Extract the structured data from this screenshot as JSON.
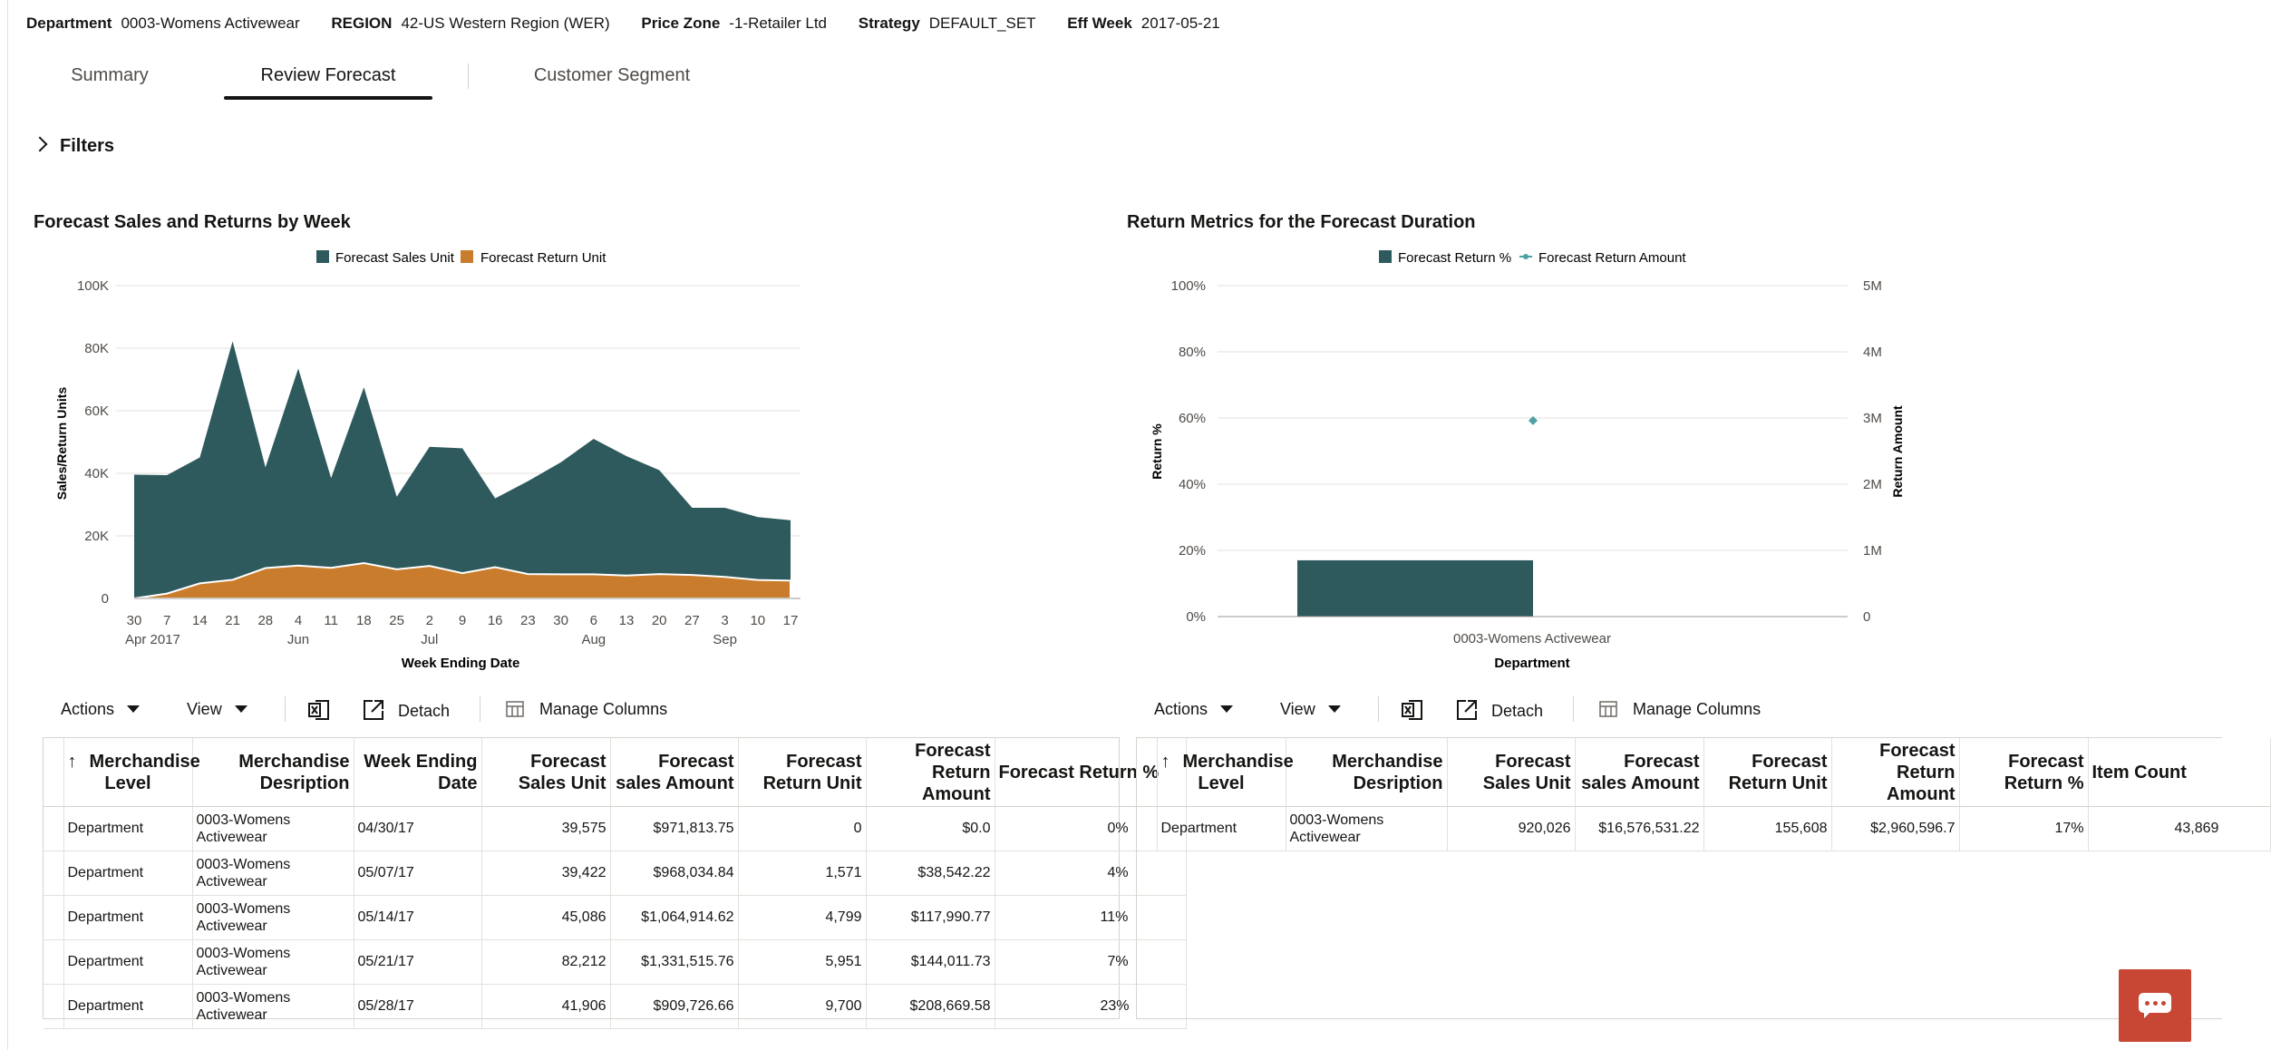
{
  "context": [
    {
      "key": "Department",
      "value": "0003-Womens Activewear"
    },
    {
      "key": "REGION",
      "value": "42-US Western Region (WER)"
    },
    {
      "key": "Price Zone",
      "value": "-1-Retailer Ltd"
    },
    {
      "key": "Strategy",
      "value": "DEFAULT_SET"
    },
    {
      "key": "Eff Week",
      "value": "2017-05-21"
    }
  ],
  "tabs": [
    {
      "label": "Summary",
      "active": false
    },
    {
      "label": "Review Forecast",
      "active": true
    },
    {
      "label": "Customer Segment",
      "active": false
    }
  ],
  "filters_label": "Filters",
  "left_chart_title": "Forecast Sales and Returns by Week",
  "right_chart_title": "Return Metrics for the Forecast Duration",
  "toolbar": {
    "actions": "Actions",
    "view": "View",
    "detach": "Detach",
    "manage_columns": "Manage Columns"
  },
  "left_table": {
    "headers": [
      "Merchandise Level",
      "Merchandise Desription",
      "Week Ending Date",
      "Forecast Sales Unit",
      "Forecast sales Amount",
      "Forecast Return Unit",
      "Forecast Return Amount",
      "Forecast Return %"
    ],
    "rows": [
      [
        "Department",
        "0003-Womens Activewear",
        "04/30/17",
        "39,575",
        "$971,813.75",
        "0",
        "$0.0",
        "0%"
      ],
      [
        "Department",
        "0003-Womens Activewear",
        "05/07/17",
        "39,422",
        "$968,034.84",
        "1,571",
        "$38,542.22",
        "4%"
      ],
      [
        "Department",
        "0003-Womens Activewear",
        "05/14/17",
        "45,086",
        "$1,064,914.62",
        "4,799",
        "$117,990.77",
        "11%"
      ],
      [
        "Department",
        "0003-Womens Activewear",
        "05/21/17",
        "82,212",
        "$1,331,515.76",
        "5,951",
        "$144,011.73",
        "7%"
      ],
      [
        "Department",
        "0003-Womens Activewear",
        "05/28/17",
        "41,906",
        "$909,726.66",
        "9,700",
        "$208,669.58",
        "23%"
      ]
    ]
  },
  "right_table": {
    "headers": [
      "Merchandise Level",
      "Merchandise Desription",
      "Forecast Sales Unit",
      "Forecast sales Amount",
      "Forecast Return Unit",
      "Forecast Return Amount",
      "Forecast Return %",
      "Item Count"
    ],
    "rows": [
      [
        "Department",
        "0003-Womens Activewear",
        "920,026",
        "$16,576,531.22",
        "155,608",
        "$2,960,596.7",
        "17%",
        "43,869"
      ]
    ]
  },
  "chart_data": [
    {
      "type": "area",
      "title": "Forecast Sales and Returns by Week",
      "xlabel": "Week Ending Date",
      "ylabel": "Sales/Return Units",
      "ylim": [
        0,
        100000
      ],
      "y_ticks": [
        "0",
        "20K",
        "40K",
        "60K",
        "80K",
        "100K"
      ],
      "x_ticks": [
        "30",
        "7",
        "14",
        "21",
        "28",
        "4",
        "11",
        "18",
        "25",
        "2",
        "9",
        "16",
        "23",
        "30",
        "6",
        "13",
        "20",
        "27",
        "3",
        "10",
        "17"
      ],
      "x_tick_months": {
        "0": "Apr 2017",
        "5": "Jun",
        "9": "Jul",
        "14": "Aug",
        "18": "Sep"
      },
      "legend_position": "top",
      "series": [
        {
          "name": "Forecast Sales Unit",
          "color": "#2e5a5e",
          "values": [
            39575,
            39422,
            45086,
            82212,
            41906,
            73500,
            38500,
            67500,
            32500,
            48500,
            48000,
            32000,
            37500,
            43500,
            51000,
            45500,
            41000,
            29000,
            29000,
            26000,
            25000
          ]
        },
        {
          "name": "Forecast Return Unit",
          "color": "#c97c2c",
          "values": [
            0,
            1571,
            4799,
            5951,
            9700,
            10500,
            9800,
            11300,
            9300,
            10400,
            8100,
            10000,
            7800,
            7700,
            7700,
            7300,
            7800,
            7500,
            6900,
            5900,
            5700
          ]
        }
      ]
    },
    {
      "type": "bar",
      "title": "Return Metrics for the Forecast Duration",
      "xlabel": "Department",
      "ylabel": "Return %",
      "y2label": "Return Amount",
      "categories": [
        "0003-Womens Activewear"
      ],
      "ylim": [
        0,
        100
      ],
      "y_ticks": [
        "0%",
        "20%",
        "40%",
        "60%",
        "80%",
        "100%"
      ],
      "y2lim": [
        0,
        5000000
      ],
      "y2_ticks": [
        "0",
        "1M",
        "2M",
        "3M",
        "4M",
        "5M"
      ],
      "legend_position": "top",
      "series": [
        {
          "name": "Forecast Return %",
          "color": "#2e5a5e",
          "values": [
            17
          ]
        },
        {
          "name": "Forecast Return Amount",
          "color": "#4fa0a0",
          "values": [
            2960596.7
          ]
        }
      ]
    }
  ]
}
